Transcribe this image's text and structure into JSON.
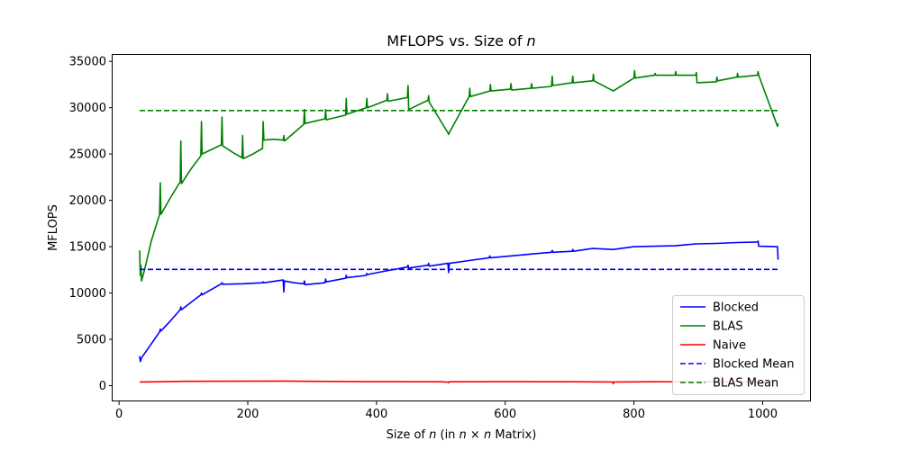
{
  "chart_data": {
    "type": "line",
    "title": "MFLOPS vs. Size of n",
    "title_prefix": "MFLOPS vs. Size of ",
    "title_var": "n",
    "xlabel": "Size of n (in n × n Matrix)",
    "xlabel_parts": [
      "Size of ",
      "n",
      " (in ",
      "n",
      " × ",
      "n",
      " Matrix)"
    ],
    "ylabel": "MFLOPS",
    "xlim": [
      -10,
      1075
    ],
    "ylim": [
      -1700,
      35700
    ],
    "xticks": [
      0,
      200,
      400,
      600,
      800,
      1000
    ],
    "xtick_labels": [
      "0",
      "200",
      "400",
      "600",
      "800",
      "1000"
    ],
    "yticks": [
      0,
      5000,
      10000,
      15000,
      20000,
      25000,
      30000,
      35000
    ],
    "ytick_labels": [
      "0",
      "5000",
      "10000",
      "15000",
      "20000",
      "25000",
      "30000",
      "35000"
    ],
    "legend_position": "lower-right",
    "series": [
      {
        "name": "Blocked",
        "color": "#0000ff",
        "style": "solid",
        "points": [
          [
            32,
            3200
          ],
          [
            33,
            2600
          ],
          [
            35,
            3000
          ],
          [
            45,
            4000
          ],
          [
            63,
            5800
          ],
          [
            64,
            6100
          ],
          [
            65,
            5900
          ],
          [
            80,
            7000
          ],
          [
            95,
            8200
          ],
          [
            96,
            8500
          ],
          [
            97,
            8200
          ],
          [
            112,
            9000
          ],
          [
            127,
            9800
          ],
          [
            128,
            10000
          ],
          [
            129,
            9800
          ],
          [
            144,
            10400
          ],
          [
            159,
            11000
          ],
          [
            160,
            11100
          ],
          [
            161,
            10950
          ],
          [
            192,
            11000
          ],
          [
            223,
            11100
          ],
          [
            224,
            11200
          ],
          [
            225,
            11100
          ],
          [
            255,
            11400
          ],
          [
            256,
            10100
          ],
          [
            257,
            11300
          ],
          [
            272,
            11100
          ],
          [
            287,
            11000
          ],
          [
            288,
            11300
          ],
          [
            289,
            10900
          ],
          [
            320,
            11100
          ],
          [
            321,
            11500
          ],
          [
            322,
            11200
          ],
          [
            352,
            11600
          ],
          [
            353,
            11900
          ],
          [
            354,
            11650
          ],
          [
            384,
            11900
          ],
          [
            385,
            12100
          ],
          [
            386,
            12000
          ],
          [
            416,
            12400
          ],
          [
            448,
            12800
          ],
          [
            449,
            13000
          ],
          [
            450,
            12700
          ],
          [
            480,
            13000
          ],
          [
            481,
            13200
          ],
          [
            482,
            12900
          ],
          [
            511,
            13200
          ],
          [
            512,
            12200
          ],
          [
            513,
            13200
          ],
          [
            544,
            13500
          ],
          [
            575,
            13800
          ],
          [
            576,
            14000
          ],
          [
            577,
            13800
          ],
          [
            608,
            14000
          ],
          [
            640,
            14200
          ],
          [
            672,
            14400
          ],
          [
            673,
            14600
          ],
          [
            674,
            14400
          ],
          [
            704,
            14500
          ],
          [
            705,
            14700
          ],
          [
            706,
            14500
          ],
          [
            736,
            14800
          ],
          [
            768,
            14700
          ],
          [
            800,
            15000
          ],
          [
            832,
            15050
          ],
          [
            864,
            15100
          ],
          [
            896,
            15300
          ],
          [
            928,
            15350
          ],
          [
            960,
            15450
          ],
          [
            992,
            15500
          ],
          [
            993,
            15600
          ],
          [
            994,
            15050
          ],
          [
            1023,
            15000
          ],
          [
            1024,
            13600
          ]
        ]
      },
      {
        "name": "BLAS",
        "color": "#008000",
        "style": "solid",
        "points": [
          [
            32,
            14600
          ],
          [
            33,
            11900
          ],
          [
            34,
            13000
          ],
          [
            35,
            11300
          ],
          [
            40,
            12600
          ],
          [
            50,
            15600
          ],
          [
            63,
            18500
          ],
          [
            64,
            21900
          ],
          [
            65,
            18500
          ],
          [
            80,
            20300
          ],
          [
            95,
            22000
          ],
          [
            96,
            26400
          ],
          [
            97,
            21800
          ],
          [
            112,
            23400
          ],
          [
            127,
            24800
          ],
          [
            128,
            28500
          ],
          [
            129,
            25000
          ],
          [
            144,
            25500
          ],
          [
            159,
            26000
          ],
          [
            160,
            29000
          ],
          [
            161,
            25900
          ],
          [
            176,
            25200
          ],
          [
            191,
            24600
          ],
          [
            192,
            27000
          ],
          [
            193,
            24500
          ],
          [
            208,
            25000
          ],
          [
            223,
            25600
          ],
          [
            224,
            28500
          ],
          [
            225,
            26500
          ],
          [
            240,
            26600
          ],
          [
            255,
            26500
          ],
          [
            256,
            27000
          ],
          [
            257,
            26400
          ],
          [
            272,
            27300
          ],
          [
            287,
            28200
          ],
          [
            288,
            29800
          ],
          [
            289,
            28300
          ],
          [
            320,
            28800
          ],
          [
            321,
            29800
          ],
          [
            322,
            28700
          ],
          [
            352,
            29200
          ],
          [
            353,
            31000
          ],
          [
            354,
            29300
          ],
          [
            384,
            30000
          ],
          [
            385,
            31000
          ],
          [
            386,
            30000
          ],
          [
            416,
            30800
          ],
          [
            417,
            31500
          ],
          [
            418,
            30700
          ],
          [
            448,
            31100
          ],
          [
            449,
            32400
          ],
          [
            450,
            29800
          ],
          [
            480,
            30800
          ],
          [
            481,
            31300
          ],
          [
            482,
            30600
          ],
          [
            511,
            27300
          ],
          [
            512,
            27100
          ],
          [
            513,
            27300
          ],
          [
            544,
            31200
          ],
          [
            545,
            32100
          ],
          [
            546,
            31200
          ],
          [
            576,
            31800
          ],
          [
            577,
            32500
          ],
          [
            578,
            31800
          ],
          [
            608,
            32000
          ],
          [
            609,
            32600
          ],
          [
            610,
            31900
          ],
          [
            640,
            32100
          ],
          [
            641,
            32600
          ],
          [
            642,
            32100
          ],
          [
            672,
            32300
          ],
          [
            673,
            33400
          ],
          [
            674,
            32400
          ],
          [
            704,
            32700
          ],
          [
            705,
            33400
          ],
          [
            706,
            32700
          ],
          [
            736,
            32900
          ],
          [
            737,
            33600
          ],
          [
            738,
            32900
          ],
          [
            768,
            31800
          ],
          [
            800,
            33200
          ],
          [
            801,
            34000
          ],
          [
            802,
            33200
          ],
          [
            832,
            33500
          ],
          [
            833,
            33700
          ],
          [
            834,
            33500
          ],
          [
            864,
            33500
          ],
          [
            865,
            33900
          ],
          [
            866,
            33500
          ],
          [
            896,
            33500
          ],
          [
            897,
            33800
          ],
          [
            898,
            32700
          ],
          [
            928,
            32800
          ],
          [
            929,
            33300
          ],
          [
            930,
            32900
          ],
          [
            960,
            33300
          ],
          [
            961,
            33700
          ],
          [
            962,
            33300
          ],
          [
            992,
            33500
          ],
          [
            993,
            33900
          ],
          [
            994,
            33500
          ],
          [
            1023,
            28000
          ],
          [
            1024,
            28300
          ]
        ]
      },
      {
        "name": "Naive",
        "color": "#ff0000",
        "style": "solid",
        "points": [
          [
            32,
            400
          ],
          [
            64,
            420
          ],
          [
            100,
            470
          ],
          [
            160,
            480
          ],
          [
            256,
            500
          ],
          [
            300,
            470
          ],
          [
            400,
            430
          ],
          [
            500,
            420
          ],
          [
            511,
            380
          ],
          [
            512,
            310
          ],
          [
            513,
            420
          ],
          [
            600,
            430
          ],
          [
            700,
            420
          ],
          [
            767,
            400
          ],
          [
            768,
            200
          ],
          [
            769,
            400
          ],
          [
            830,
            420
          ],
          [
            960,
            410
          ],
          [
            1024,
            400
          ]
        ]
      },
      {
        "name": "Blocked Mean",
        "color": "#0000ff",
        "style": "dashed",
        "points": [
          [
            32,
            12550
          ],
          [
            1024,
            12550
          ]
        ]
      },
      {
        "name": "BLAS Mean",
        "color": "#008000",
        "style": "dashed",
        "points": [
          [
            32,
            29700
          ],
          [
            1024,
            29700
          ]
        ]
      }
    ]
  }
}
